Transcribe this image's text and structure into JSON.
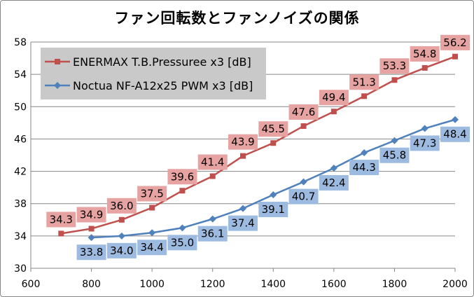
{
  "chart_data": {
    "type": "line",
    "title": "ファン回転数とファンノイズの関係",
    "xlim": [
      600,
      2000
    ],
    "ylim": [
      30,
      58
    ],
    "x_ticks": [
      600,
      800,
      1000,
      1200,
      1400,
      1600,
      1800,
      2000
    ],
    "y_ticks": [
      30,
      34,
      38,
      42,
      46,
      50,
      54,
      58
    ],
    "grid": "horizontal",
    "legend_position": "top-left",
    "series": [
      {
        "name": "ENERMAX T.B.Pressuree x3 [dB]",
        "color": "#c0504d",
        "label_bg": "#e6a3a1",
        "marker": "square",
        "label_position": "above",
        "x": [
          700,
          800,
          900,
          1000,
          1100,
          1200,
          1300,
          1400,
          1500,
          1600,
          1700,
          1800,
          1900,
          2000
        ],
        "values": [
          34.3,
          34.9,
          36.0,
          37.5,
          39.6,
          41.4,
          43.9,
          45.5,
          47.6,
          49.4,
          51.3,
          53.3,
          54.8,
          56.2
        ],
        "labels": [
          "34.3",
          "34.9",
          "36.0",
          "37.5",
          "39.6",
          "41.4",
          "43.9",
          "45.5",
          "47.6",
          "49.4",
          "51.3",
          "53.3",
          "54.8",
          "56.2"
        ]
      },
      {
        "name": "Noctua NF-A12x25 PWM x3 [dB]",
        "color": "#4f81bd",
        "label_bg": "#9dbbe0",
        "marker": "diamond",
        "label_position": "below",
        "x": [
          800,
          900,
          1000,
          1100,
          1200,
          1300,
          1400,
          1500,
          1600,
          1700,
          1800,
          1900,
          2000
        ],
        "values": [
          33.8,
          34.0,
          34.4,
          35.0,
          36.1,
          37.4,
          39.1,
          40.7,
          42.4,
          44.3,
          45.8,
          47.3,
          48.4
        ],
        "labels": [
          "33.8",
          "34.0",
          "34.4",
          "35.0",
          "36.1",
          "37.4",
          "39.1",
          "40.7",
          "42.4",
          "44.3",
          "45.8",
          "47.3",
          "48.4"
        ]
      }
    ]
  }
}
